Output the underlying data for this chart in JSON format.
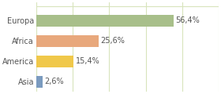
{
  "categories": [
    "Asia",
    "America",
    "Africa",
    "Europa"
  ],
  "values": [
    2.6,
    15.4,
    25.6,
    56.4
  ],
  "bar_colors": [
    "#7b9bbf",
    "#f0c84a",
    "#e8a87c",
    "#a8bf8a"
  ],
  "labels": [
    "2,6%",
    "15,4%",
    "25,6%",
    "56,4%"
  ],
  "xlim": [
    0,
    75
  ],
  "figsize": [
    2.8,
    1.2
  ],
  "dpi": 100,
  "background_color": "#ffffff",
  "bar_height": 0.58,
  "label_fontsize": 7.0,
  "tick_fontsize": 7.0,
  "grid_color": "#d8e4bc",
  "grid_positions": [
    0,
    15,
    30,
    45,
    60,
    75
  ]
}
